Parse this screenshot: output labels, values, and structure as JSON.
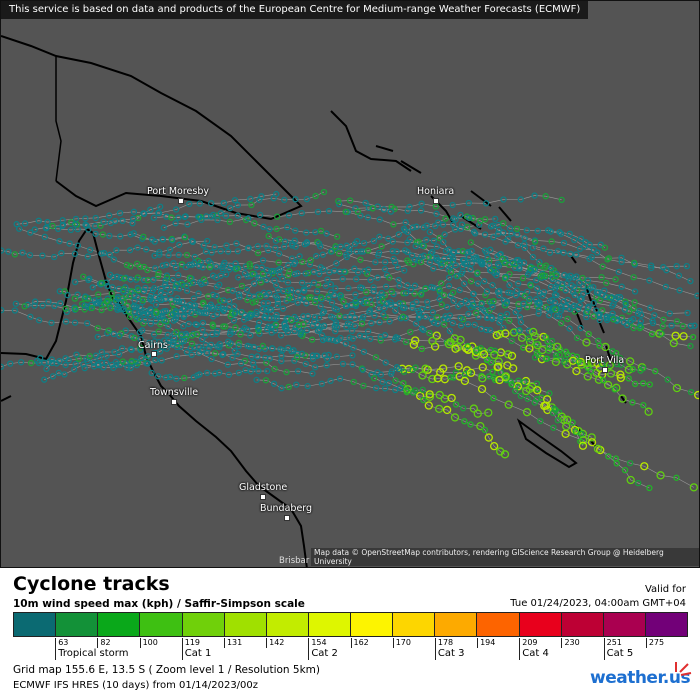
{
  "banner": "This service is based on data and products of the European Centre for Medium-range Weather Forecasts (ECMWF)",
  "cities": [
    {
      "name": "Port Moresby"
    },
    {
      "name": "Honiara"
    },
    {
      "name": "Cairns"
    },
    {
      "name": "Townsville"
    },
    {
      "name": "Port Vila"
    },
    {
      "name": "Gladstone"
    },
    {
      "name": "Bundaberg"
    }
  ],
  "attribution": "Map data © OpenStreetMap contributors, rendering GIScience Research Group @ Heidelberg University",
  "partial_label": "Brisbar",
  "legend": {
    "title": "Cyclone tracks",
    "subtitle": "10m wind speed max (kph) / Saffir-Simpson scale",
    "valid_label": "Valid for",
    "valid_date": "Tue 01/24/2023, 04:00am GMT+04",
    "colors": [
      "#0b6a72",
      "#139138",
      "#0aa81a",
      "#3ec012",
      "#70d00a",
      "#a0e000",
      "#c2ec00",
      "#def600",
      "#fdf400",
      "#fdd600",
      "#fdaa00",
      "#fd6400",
      "#e8001c",
      "#bd0034",
      "#aa0050",
      "#720078"
    ],
    "ticks": [
      "63",
      "82",
      "100",
      "119",
      "131",
      "142",
      "154",
      "162",
      "170",
      "178",
      "194",
      "209",
      "230",
      "251",
      "275"
    ],
    "categories": [
      {
        "label": "Tropical storm",
        "tick": 0
      },
      {
        "label": "Cat 1",
        "tick": 3
      },
      {
        "label": "Cat 2",
        "tick": 6
      },
      {
        "label": "Cat 3",
        "tick": 9
      },
      {
        "label": "Cat 4",
        "tick": 11
      },
      {
        "label": "Cat 5",
        "tick": 13
      }
    ],
    "grid": "Grid map 155.6 E, 13.5 S ( Zoom level 1 / Resolution 5km)",
    "model": "ECMWF IFS HRES (10 days) from  01/14/2023/00z",
    "logo": "weather.us"
  }
}
